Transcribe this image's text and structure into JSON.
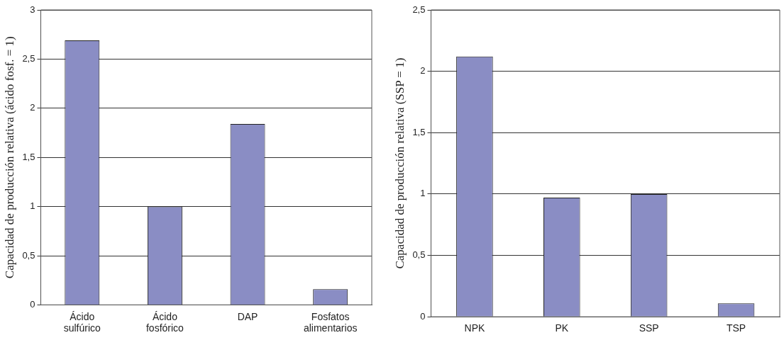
{
  "chart_data": [
    {
      "type": "bar",
      "ylabel": "Capacidad de producción relativa (ácido fosf. = 1)",
      "categories": [
        "Ácido sulfúrico",
        "Ácido fosfórico",
        "DAP",
        "Fosfatos alimentarios"
      ],
      "values": [
        2.69,
        1.0,
        1.84,
        0.16
      ],
      "color": "#8a8dc4",
      "ylim": [
        0,
        3
      ],
      "yticks": [
        0,
        {
          "value": 0.5,
          "label": "0,5"
        },
        1,
        {
          "value": 1.5,
          "label": "1,5"
        },
        2,
        {
          "value": 2.5,
          "label": "2,5"
        },
        3
      ],
      "grid": "y"
    },
    {
      "type": "bar",
      "ylabel": "Capacidad de producción relativa (SSP = 1)",
      "categories": [
        "NPK",
        "PK",
        "SSP",
        "TSP"
      ],
      "values": [
        2.12,
        0.97,
        1.0,
        0.11
      ],
      "color": "#8a8dc4",
      "ylim": [
        0,
        2.5
      ],
      "yticks": [
        0,
        {
          "value": 0.5,
          "label": "0,5"
        },
        1,
        {
          "value": 1.5,
          "label": "1,5"
        },
        2,
        {
          "value": 2.5,
          "label": "2,5"
        }
      ],
      "grid": "y"
    }
  ]
}
